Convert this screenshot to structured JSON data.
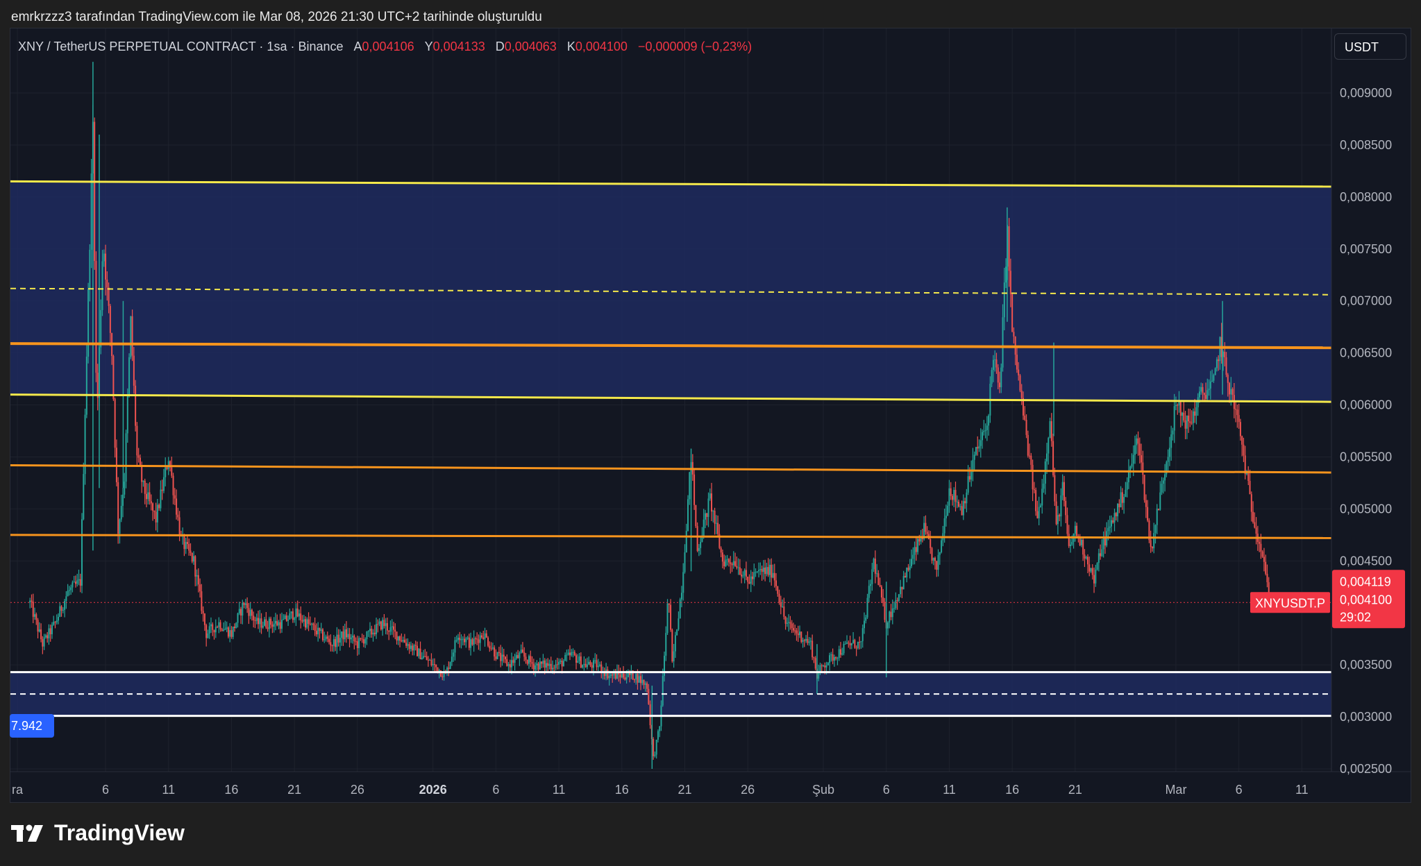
{
  "header": {
    "attribution": "emrkrzzz3 tarafından TradingView.com ile Mar 08, 2026 21:30 UTC+2 tarihinde oluşturuldu"
  },
  "legend": {
    "symbol": "XNY / TetherUS PERPETUAL CONTRACT · 1sa · Binance",
    "open_label": "A",
    "open": "0,004106",
    "high_label": "Y",
    "high": "0,004133",
    "low_label": "D",
    "low": "0,004063",
    "close_label": "K",
    "close": "0,004100",
    "change": "−0,000009 (−0,23%)"
  },
  "currency_button": "USDT",
  "brand": {
    "name": "TradingView"
  },
  "price_tags": {
    "bid": "0,004119",
    "last": "0,004100",
    "countdown": "29:02",
    "symbol": "XNYUSDT.P",
    "left_tag": "7.942"
  },
  "colors": {
    "background": "#131722",
    "zone": "#1e2a5e",
    "yellow": "#f5e94b",
    "orange": "#f7941d",
    "white": "#ffffff",
    "up": "#26a69a",
    "down": "#ef5350",
    "price_tag": "#f23645",
    "blue_tag": "#2962ff"
  },
  "chart_data": {
    "type": "candlestick",
    "symbol": "XNYUSDT.P",
    "timeframe": "1sa",
    "ylim": [
      0.0025,
      0.0093
    ],
    "y_ticks": [
      {
        "value": 0.009,
        "label": "0,009000"
      },
      {
        "value": 0.0085,
        "label": "0,008500"
      },
      {
        "value": 0.008,
        "label": "0,008000"
      },
      {
        "value": 0.0075,
        "label": "0,007500"
      },
      {
        "value": 0.007,
        "label": "0,007000"
      },
      {
        "value": 0.0065,
        "label": "0,006500"
      },
      {
        "value": 0.006,
        "label": "0,006000"
      },
      {
        "value": 0.0055,
        "label": "0,005500"
      },
      {
        "value": 0.005,
        "label": "0,005000"
      },
      {
        "value": 0.0045,
        "label": "0,004500"
      },
      {
        "value": 0.0035,
        "label": "0,003500"
      },
      {
        "value": 0.003,
        "label": "0,003000"
      },
      {
        "value": 0.0025,
        "label": "0,002500"
      }
    ],
    "x_ticks": [
      {
        "day": -1,
        "label": "ra"
      },
      {
        "day": 6,
        "label": "6"
      },
      {
        "day": 11,
        "label": "11"
      },
      {
        "day": 16,
        "label": "16"
      },
      {
        "day": 21,
        "label": "21"
      },
      {
        "day": 26,
        "label": "26"
      },
      {
        "day": 32,
        "label": "2026",
        "bold": true
      },
      {
        "day": 37,
        "label": "6"
      },
      {
        "day": 42,
        "label": "11"
      },
      {
        "day": 47,
        "label": "16"
      },
      {
        "day": 52,
        "label": "21"
      },
      {
        "day": 57,
        "label": "26"
      },
      {
        "day": 63,
        "label": "Şub"
      },
      {
        "day": 68,
        "label": "6"
      },
      {
        "day": 73,
        "label": "11"
      },
      {
        "day": 78,
        "label": "16"
      },
      {
        "day": 83,
        "label": "21"
      },
      {
        "day": 91,
        "label": "Mar"
      },
      {
        "day": 96,
        "label": "6"
      },
      {
        "day": 101,
        "label": "11"
      }
    ],
    "x_range": [
      -1.5,
      107
    ],
    "last_day": 98.4,
    "price_path": [
      [
        0,
        0.0041
      ],
      [
        1,
        0.0037
      ],
      [
        2,
        0.0039
      ],
      [
        3,
        0.0042
      ],
      [
        4,
        0.0043
      ],
      [
        4.5,
        0.0065
      ],
      [
        5,
        0.0087
      ],
      [
        5.3,
        0.0058
      ],
      [
        5.8,
        0.0076
      ],
      [
        6.5,
        0.0065
      ],
      [
        7,
        0.0048
      ],
      [
        7.5,
        0.0053
      ],
      [
        8,
        0.0068
      ],
      [
        8.5,
        0.0055
      ],
      [
        9,
        0.0052
      ],
      [
        10,
        0.0049
      ],
      [
        11,
        0.0055
      ],
      [
        12,
        0.0047
      ],
      [
        13,
        0.0045
      ],
      [
        14,
        0.0038
      ],
      [
        15,
        0.0039
      ],
      [
        16,
        0.0038
      ],
      [
        17,
        0.0041
      ],
      [
        18,
        0.0039
      ],
      [
        19,
        0.0039
      ],
      [
        20,
        0.0039
      ],
      [
        21,
        0.004
      ],
      [
        22,
        0.0039
      ],
      [
        23,
        0.0038
      ],
      [
        24,
        0.0037
      ],
      [
        25,
        0.0038
      ],
      [
        26,
        0.0037
      ],
      [
        27,
        0.0038
      ],
      [
        28,
        0.0039
      ],
      [
        29,
        0.0038
      ],
      [
        30,
        0.0037
      ],
      [
        31,
        0.0036
      ],
      [
        32,
        0.0035
      ],
      [
        33,
        0.0034
      ],
      [
        34,
        0.0038
      ],
      [
        35,
        0.0037
      ],
      [
        36,
        0.0038
      ],
      [
        37,
        0.0036
      ],
      [
        38,
        0.0035
      ],
      [
        39,
        0.0036
      ],
      [
        40,
        0.0035
      ],
      [
        41,
        0.0035
      ],
      [
        42,
        0.0035
      ],
      [
        43,
        0.0036
      ],
      [
        44,
        0.0035
      ],
      [
        45,
        0.0035
      ],
      [
        46,
        0.0034
      ],
      [
        47,
        0.0034
      ],
      [
        48,
        0.0034
      ],
      [
        49,
        0.0033
      ],
      [
        49.5,
        0.0026
      ],
      [
        50,
        0.0029
      ],
      [
        50.7,
        0.0042
      ],
      [
        51,
        0.0035
      ],
      [
        51.8,
        0.0043
      ],
      [
        52.5,
        0.0055
      ],
      [
        53,
        0.0046
      ],
      [
        54,
        0.0051
      ],
      [
        55,
        0.0045
      ],
      [
        56,
        0.0045
      ],
      [
        57,
        0.0043
      ],
      [
        58,
        0.0044
      ],
      [
        59,
        0.0044
      ],
      [
        60,
        0.0039
      ],
      [
        61,
        0.0038
      ],
      [
        62,
        0.0037
      ],
      [
        62.5,
        0.0034
      ],
      [
        63,
        0.0035
      ],
      [
        64,
        0.0036
      ],
      [
        65,
        0.0037
      ],
      [
        66,
        0.0037
      ],
      [
        67,
        0.0045
      ],
      [
        68,
        0.0039
      ],
      [
        69,
        0.0042
      ],
      [
        70,
        0.0045
      ],
      [
        71,
        0.0048
      ],
      [
        72,
        0.0044
      ],
      [
        73,
        0.0052
      ],
      [
        74,
        0.005
      ],
      [
        75,
        0.0055
      ],
      [
        76,
        0.0058
      ],
      [
        76.5,
        0.0065
      ],
      [
        77,
        0.0061
      ],
      [
        77.6,
        0.0077
      ],
      [
        78,
        0.0067
      ],
      [
        79,
        0.0058
      ],
      [
        80,
        0.0049
      ],
      [
        80.5,
        0.0053
      ],
      [
        81,
        0.0059
      ],
      [
        81.5,
        0.0048
      ],
      [
        82,
        0.0052
      ],
      [
        82.5,
        0.0046
      ],
      [
        83,
        0.0048
      ],
      [
        84,
        0.0045
      ],
      [
        84.5,
        0.0043
      ],
      [
        85,
        0.0046
      ],
      [
        86,
        0.0049
      ],
      [
        87,
        0.0052
      ],
      [
        88,
        0.0057
      ],
      [
        89,
        0.0046
      ],
      [
        90,
        0.0053
      ],
      [
        91,
        0.006
      ],
      [
        92,
        0.0058
      ],
      [
        93,
        0.0061
      ],
      [
        94,
        0.0062
      ],
      [
        94.5,
        0.0066
      ],
      [
        95,
        0.0063
      ],
      [
        96,
        0.0058
      ],
      [
        97,
        0.005
      ],
      [
        98,
        0.0045
      ],
      [
        98.4,
        0.0041
      ]
    ],
    "spikes": [
      {
        "day": 5.0,
        "high": 0.0093,
        "low": 0.0046
      },
      {
        "day": 5.5,
        "high": 0.0086,
        "low": 0.0052
      },
      {
        "day": 7.4,
        "high": 0.007,
        "low": 0.0052
      },
      {
        "day": 52.5,
        "high": 0.00558,
        "low": 0.0044
      },
      {
        "day": 49.4,
        "high": 0.0033,
        "low": 0.0025
      },
      {
        "day": 62.5,
        "high": 0.0037,
        "low": 0.00322
      },
      {
        "day": 68.0,
        "high": 0.0043,
        "low": 0.00338
      },
      {
        "day": 77.6,
        "high": 0.0079,
        "low": 0.0068
      },
      {
        "day": 94.7,
        "high": 0.007,
        "low": 0.0061
      },
      {
        "day": 81.3,
        "high": 0.0066,
        "low": 0.0057
      }
    ],
    "zones": [
      {
        "name": "upper-zone",
        "top_start": 0.00815,
        "top_end": 0.0081,
        "bottom_start": 0.0061,
        "bottom_end": 0.00603,
        "color": "zone"
      },
      {
        "name": "lower-zone",
        "top_start": 0.00343,
        "top_end": 0.00343,
        "bottom_start": 0.00301,
        "bottom_end": 0.00301,
        "color": "zone"
      }
    ],
    "levels": [
      {
        "name": "yellow-line-top",
        "start": 0.00815,
        "end": 0.0081,
        "color": "yellow",
        "width": 3
      },
      {
        "name": "yellow-dashed-line",
        "start": 0.00712,
        "end": 0.00706,
        "color": "yellow",
        "width": 2,
        "dashed": true
      },
      {
        "name": "orange-line-upper",
        "start": 0.00659,
        "end": 0.00655,
        "color": "orange",
        "width": 4
      },
      {
        "name": "yellow-line-bottom",
        "start": 0.0061,
        "end": 0.00603,
        "color": "yellow",
        "width": 3
      },
      {
        "name": "orange-line-middle",
        "start": 0.00542,
        "end": 0.00535,
        "color": "orange",
        "width": 3
      },
      {
        "name": "orange-line-lower",
        "start": 0.00475,
        "end": 0.00472,
        "color": "orange",
        "width": 3
      },
      {
        "name": "white-line-top",
        "start": 0.00343,
        "end": 0.00343,
        "color": "white",
        "width": 3
      },
      {
        "name": "white-dashed-line",
        "start": 0.00322,
        "end": 0.00322,
        "color": "white",
        "width": 2,
        "dashed": true
      },
      {
        "name": "white-line-bottom",
        "start": 0.00301,
        "end": 0.00301,
        "color": "white",
        "width": 3
      }
    ],
    "current_price": 0.0041,
    "grid": true
  }
}
